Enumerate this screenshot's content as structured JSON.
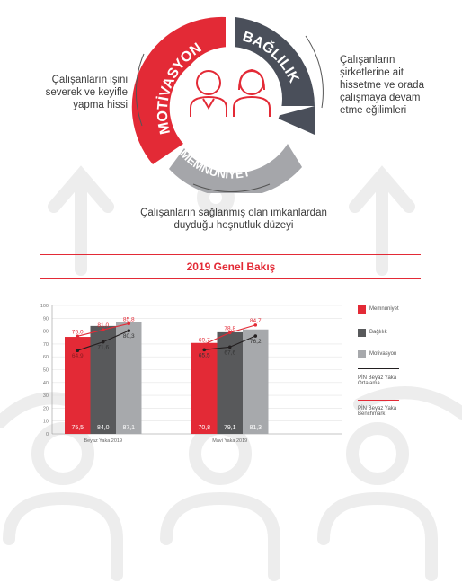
{
  "infographic": {
    "segments": [
      {
        "label": "MOTİVASYON",
        "color": "#e32a36"
      },
      {
        "label": "BAĞLILIK",
        "color": "#4a4f5a"
      },
      {
        "label": "MEMNUNİYET",
        "color": "#a5a6aa"
      }
    ],
    "descriptions": {
      "left": "Çalışanların işini severek ve keyifle yapma hissi",
      "right": "Çalışanların şirketlerine ait hissetme ve orada çalışmaya devam etme eğilimleri",
      "bottom": "Çalışanların sağlanmış olan imkanlardan duyduğu hoşnutluk düzeyi"
    },
    "icons": [
      "male-person-icon",
      "female-person-icon"
    ]
  },
  "section_title": "2019 Genel Bakış",
  "legend": [
    {
      "label": "Memnuniyet",
      "color": "#e32a36",
      "kind": "swatch"
    },
    {
      "label": "Bağlılık",
      "color": "#58595b",
      "kind": "swatch"
    },
    {
      "label": "Motivasyon",
      "color": "#a7a9ac",
      "kind": "swatch"
    },
    {
      "label": "PİN Beyaz Yaka Ortalama",
      "color": "#231f20",
      "kind": "line"
    },
    {
      "label": "PİN Beyaz Yaka Benchmark",
      "color": "#e32a36",
      "kind": "line"
    }
  ],
  "chart_data": {
    "type": "bar",
    "categories": [
      "Beyaz Yaka 2019",
      "Mavi Yaka 2019"
    ],
    "ylim": [
      0,
      100
    ],
    "yticks": [
      "0",
      "10",
      "20",
      "30",
      "40",
      "50",
      "60",
      "70",
      "80",
      "90",
      "100"
    ],
    "series": [
      {
        "name": "Memnuniyet",
        "color": "#e32a36",
        "values": [
          75.5,
          70.8
        ],
        "labels": [
          "75,5",
          "70,8"
        ]
      },
      {
        "name": "Bağlılık",
        "color": "#58595b",
        "values": [
          84.0,
          79.1
        ],
        "labels": [
          "84,0",
          "79,1"
        ]
      },
      {
        "name": "Motivasyon",
        "color": "#a7a9ac",
        "values": [
          87.1,
          81.3
        ],
        "labels": [
          "87,1",
          "81,3"
        ]
      }
    ],
    "lines": [
      {
        "name": "PİN Beyaz Yaka Ortalama",
        "color": "#231f20",
        "values": [
          [
            64.9,
            71.6,
            80.3
          ],
          [
            65.5,
            67.6,
            76.2
          ]
        ],
        "labels": [
          [
            "64,9",
            "71,6",
            "80,3"
          ],
          [
            "65,5",
            "67,6",
            "76,2"
          ]
        ]
      },
      {
        "name": "PİN Beyaz Yaka Benchmark",
        "color": "#e32a36",
        "values": [
          [
            76.0,
            81.0,
            85.8
          ],
          [
            69.7,
            78.8,
            84.7
          ]
        ],
        "labels": [
          [
            "76,0",
            "81,0",
            "85,8"
          ],
          [
            "69,7",
            "78,8",
            "84,7"
          ]
        ]
      }
    ]
  }
}
